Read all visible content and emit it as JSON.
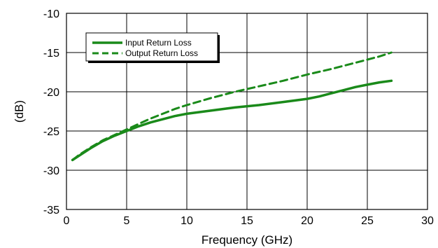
{
  "chart_data": {
    "type": "line",
    "title": "",
    "xlabel": "Frequency (GHz)",
    "ylabel": "(dB)",
    "xlim": [
      0,
      30
    ],
    "ylim": [
      -35,
      -10
    ],
    "x_ticks": [
      "0",
      "5",
      "10",
      "15",
      "20",
      "25",
      "30"
    ],
    "y_ticks": [
      "-35",
      "-30",
      "-25",
      "-20",
      "-15",
      "-10"
    ],
    "grid": true,
    "legend_position": "top-left",
    "series": [
      {
        "name": "Input Return Loss",
        "style": "solid",
        "color": "#1a8a1a",
        "x": [
          0.5,
          1,
          2,
          3,
          4,
          5,
          6,
          7,
          8,
          9,
          10,
          12,
          14,
          16,
          18,
          20,
          21,
          22,
          23,
          24,
          25,
          26,
          27
        ],
        "y": [
          -28.7,
          -28.2,
          -27.2,
          -26.3,
          -25.6,
          -25.0,
          -24.4,
          -23.9,
          -23.5,
          -23.1,
          -22.8,
          -22.4,
          -22.0,
          -21.7,
          -21.3,
          -20.9,
          -20.6,
          -20.2,
          -19.8,
          -19.4,
          -19.1,
          -18.8,
          -18.6
        ]
      },
      {
        "name": "Output Return Loss",
        "style": "dashed",
        "color": "#1a8a1a",
        "x": [
          0.5,
          1,
          2,
          3,
          4,
          5,
          6,
          7,
          8,
          9,
          10,
          12,
          14,
          16,
          18,
          20,
          22,
          24,
          26,
          27
        ],
        "y": [
          -28.7,
          -28.1,
          -27.1,
          -26.2,
          -25.5,
          -24.8,
          -24.1,
          -23.4,
          -22.8,
          -22.2,
          -21.7,
          -20.8,
          -20.0,
          -19.3,
          -18.6,
          -17.8,
          -17.1,
          -16.3,
          -15.5,
          -15.0
        ]
      }
    ]
  }
}
